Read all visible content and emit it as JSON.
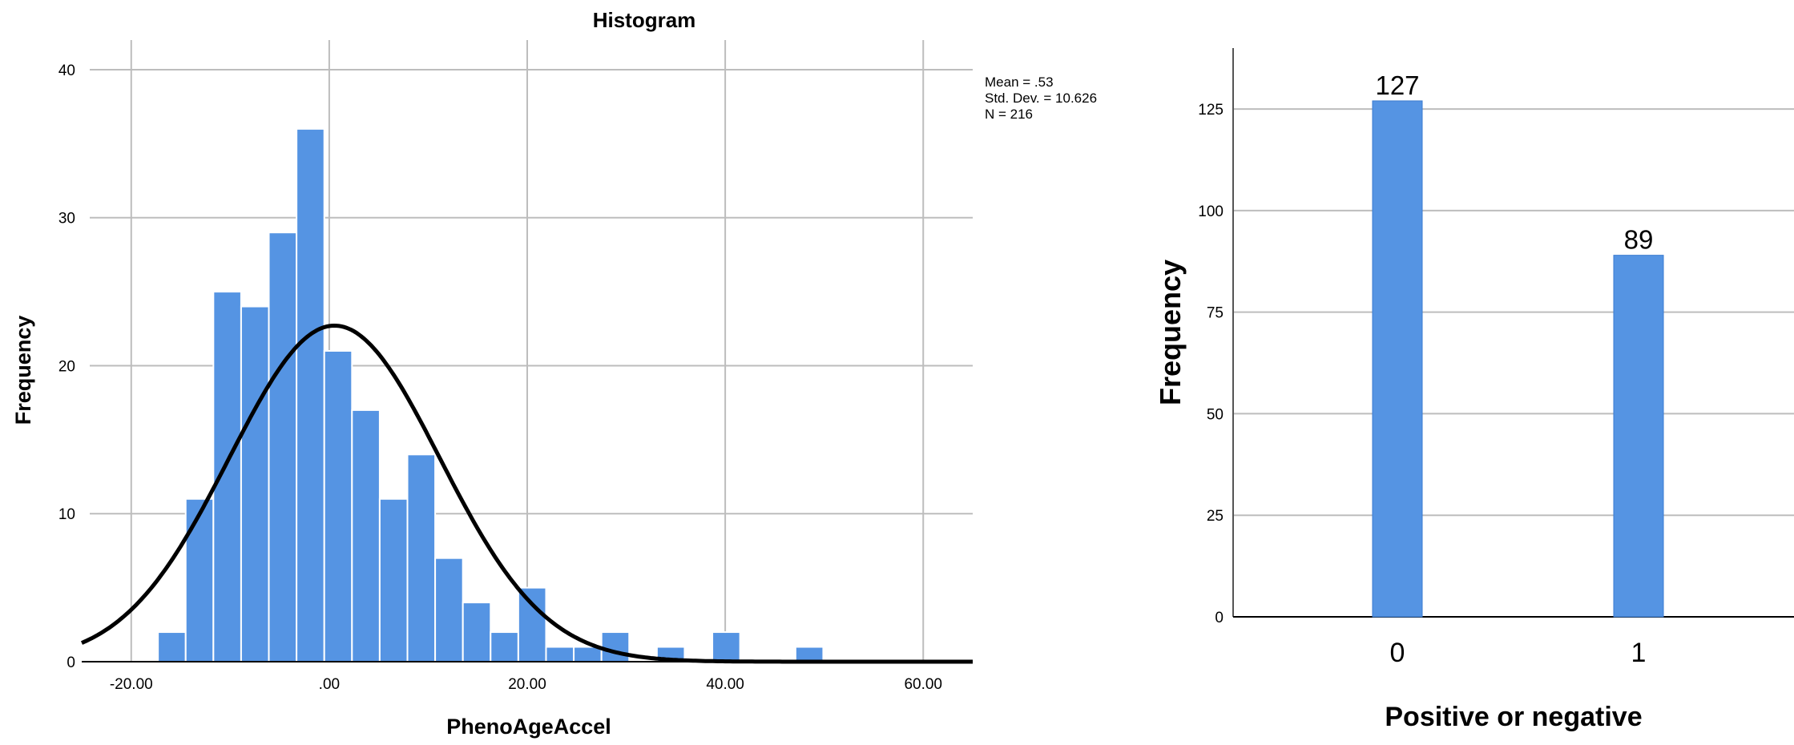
{
  "chart_data": [
    {
      "type": "bar",
      "subtype": "histogram",
      "title": "Histogram",
      "xlabel": "PhenoAgeAccel",
      "ylabel": "Frequency",
      "xlim": [
        -25,
        65
      ],
      "ylim": [
        0,
        42
      ],
      "x_ticks": [
        -20,
        0,
        20,
        40,
        60
      ],
      "x_tick_labels": [
        "-20.00",
        ".00",
        "20.00",
        "40.00",
        "60.00"
      ],
      "y_ticks": [
        0,
        10,
        20,
        30,
        40
      ],
      "bin_width": 2.8,
      "bin_starts": [
        -17.3,
        -14.5,
        -11.7,
        -8.9,
        -6.1,
        -3.3,
        -0.5,
        2.3,
        5.1,
        7.9,
        10.7,
        13.5,
        16.3,
        19.1,
        21.9,
        24.7,
        27.5,
        30.3,
        33.1,
        35.9,
        38.7,
        41.5,
        44.3,
        47.1,
        49.9
      ],
      "values": [
        2,
        11,
        25,
        24,
        29,
        36,
        21,
        17,
        11,
        14,
        7,
        4,
        2,
        5,
        1,
        1,
        2,
        0,
        1,
        0,
        2,
        0,
        0,
        1,
        0
      ],
      "normal_curve": {
        "mean": 0.53,
        "std_dev": 10.626,
        "n": 216
      },
      "stats": {
        "mean": "Mean = .53",
        "std_dev": "Std. Dev. = 10.626",
        "n": "N = 216"
      },
      "grid": true,
      "bar_color": "#5594e3",
      "curve_color": "#000000"
    },
    {
      "type": "bar",
      "xlabel": "Positive or negative",
      "ylabel": "Frequency",
      "categories": [
        "0",
        "1"
      ],
      "values": [
        127,
        89
      ],
      "data_labels": [
        "127",
        "89"
      ],
      "ylim": [
        0,
        140
      ],
      "y_ticks": [
        0,
        25,
        50,
        75,
        100,
        125
      ],
      "grid": true,
      "bar_color": "#5594e3"
    }
  ]
}
